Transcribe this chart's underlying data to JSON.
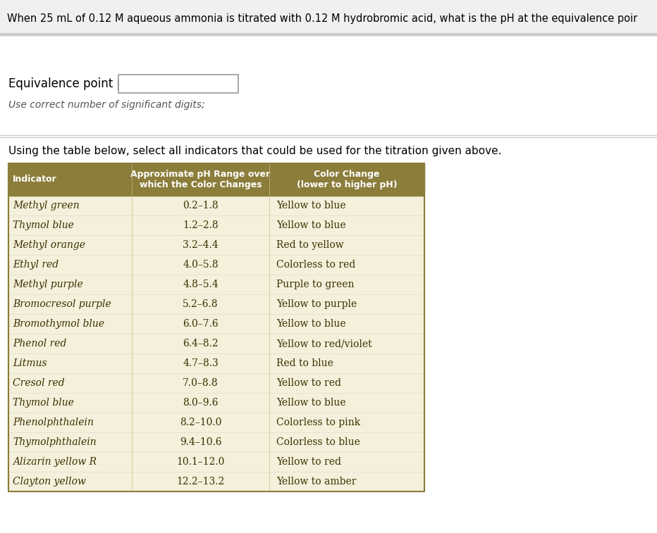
{
  "title_text": "When 25 mL of 0.12 ​M​ aqueous ammonia is titrated with 0.12 ​M​ hydrobromic acid, what is the pH at the equivalence poir",
  "title_color": "#8B0000",
  "question_text": "When 25 mL of 0.12 M aqueous ammonia is titrated with 0.12 M hydrobromic acid, what is the pH at the equivalence poir",
  "eq_label": "Equivalence point pH =",
  "sig_dig_note": "Use correct number of significant digits;",
  "table_instruction": "Using the table below, select all indicators that could be used for the titration given above.",
  "header_bg": "#8B7D3A",
  "header_text_color": "#FFFFFF",
  "table_bg": "#F5F0DC",
  "col_headers": [
    "Indicator",
    "Approximate pH Range over\nwhich the Color Changes",
    "Color Change\n(lower to higher pH)"
  ],
  "rows": [
    [
      "Methyl green",
      "0.2–1.8",
      "Yellow to blue"
    ],
    [
      "Thymol blue",
      "1.2–2.8",
      "Yellow to blue"
    ],
    [
      "Methyl orange",
      "3.2–4.4",
      "Red to yellow"
    ],
    [
      "Ethyl red",
      "4.0–5.8",
      "Colorless to red"
    ],
    [
      "Methyl purple",
      "4.8–5.4",
      "Purple to green"
    ],
    [
      "Bromocresol purple",
      "5.2–6.8",
      "Yellow to purple"
    ],
    [
      "Bromothymol blue",
      "6.0–7.6",
      "Yellow to blue"
    ],
    [
      "Phenol red",
      "6.4–8.2",
      "Yellow to red/violet"
    ],
    [
      "Litmus",
      "4.7–8.3",
      "Red to blue"
    ],
    [
      "Cresol red",
      "7.0–8.8",
      "Yellow to red"
    ],
    [
      "Thymol blue",
      "8.0–9.6",
      "Yellow to blue"
    ],
    [
      "Phenolphthalein",
      "8.2–10.0",
      "Colorless to pink"
    ],
    [
      "Thymolphthalein",
      "9.4–10.6",
      "Colorless to blue"
    ],
    [
      "Alizarin yellow R",
      "10.1–12.0",
      "Yellow to red"
    ],
    [
      "Clayton yellow",
      "12.2–13.2",
      "Yellow to amber"
    ]
  ],
  "page_bg": "#FFFFFF",
  "separator_color": "#CCCCCC",
  "question_text_color": "#000000",
  "eq_label_color": "#000000",
  "sig_dig_color": "#555555",
  "table_text_color": "#3B3000",
  "header_stripe_color": "#9E8C45"
}
